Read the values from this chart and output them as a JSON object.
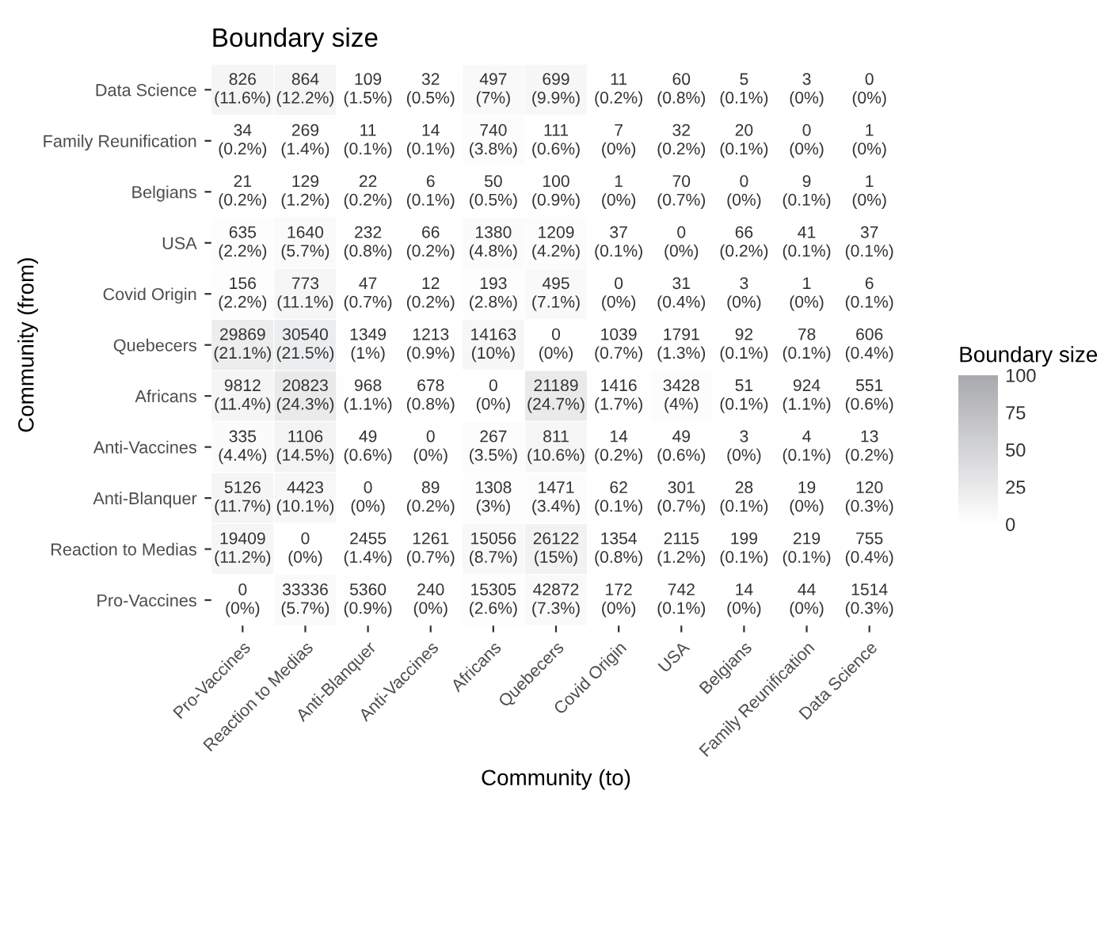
{
  "chart_data": {
    "type": "heatmap",
    "title": "Boundary size",
    "xlabel": "Community (to)",
    "ylabel": "Community (from)",
    "clabel": "Boundary size",
    "categories": [
      "Pro-Vaccines",
      "Reaction to Medias",
      "Anti-Blanquer",
      "Anti-Vaccines",
      "Africans",
      "Quebecers",
      "Covid Origin",
      "USA",
      "Belgians",
      "Family Reunification",
      "Data Science"
    ],
    "y_categories": [
      "Data Science",
      "Family Reunification",
      "Belgians",
      "USA",
      "Covid Origin",
      "Quebecers",
      "Africans",
      "Anti-Vaccines",
      "Anti-Blanquer",
      "Reaction to Medias",
      "Pro-Vaccines"
    ],
    "cells": [
      [
        11.6,
        12.2,
        1.5,
        0.5,
        7,
        9.9,
        0.2,
        0.8,
        0.1,
        0,
        0
      ],
      [
        0.2,
        1.4,
        0.1,
        0.1,
        3.8,
        0.6,
        0,
        0.2,
        0.1,
        0,
        0
      ],
      [
        0.2,
        1.2,
        0.2,
        0.1,
        0.5,
        0.9,
        0,
        0.7,
        0,
        0.1,
        0
      ],
      [
        2.2,
        5.7,
        0.8,
        0.2,
        4.8,
        4.2,
        0.1,
        0,
        0.2,
        0.1,
        0.1
      ],
      [
        2.2,
        11.1,
        0.7,
        0.2,
        2.8,
        7.1,
        0,
        0.4,
        0,
        0,
        0.1
      ],
      [
        21.1,
        21.5,
        1,
        0.9,
        10,
        0,
        0.7,
        1.3,
        0.1,
        0.1,
        0.4
      ],
      [
        11.4,
        24.3,
        1.1,
        0.8,
        0,
        24.7,
        1.7,
        4,
        0.1,
        1.1,
        0.6
      ],
      [
        4.4,
        14.5,
        0.6,
        0,
        3.5,
        10.6,
        0.2,
        0.6,
        0,
        0.1,
        0.2
      ],
      [
        11.7,
        10.1,
        0,
        0.2,
        3,
        3.4,
        0.1,
        0.7,
        0.1,
        0,
        0.3
      ],
      [
        11.2,
        0,
        1.4,
        0.7,
        8.7,
        15,
        0.8,
        1.2,
        0.1,
        0.1,
        0.4
      ],
      [
        0,
        5.7,
        0.9,
        0,
        2.6,
        7.3,
        0,
        0.1,
        0,
        0,
        0.3
      ]
    ],
    "cell_labels": [
      [
        "826\n(11.6%)",
        "864\n(12.2%)",
        "109\n(1.5%)",
        "32\n(0.5%)",
        "497\n(7%)",
        "699\n(9.9%)",
        "11\n(0.2%)",
        "60\n(0.8%)",
        "5\n(0.1%)",
        "3\n(0%)",
        "0\n(0%)"
      ],
      [
        "34\n(0.2%)",
        "269\n(1.4%)",
        "11\n(0.1%)",
        "14\n(0.1%)",
        "740\n(3.8%)",
        "111\n(0.6%)",
        "7\n(0%)",
        "32\n(0.2%)",
        "20\n(0.1%)",
        "0\n(0%)",
        "1\n(0%)"
      ],
      [
        "21\n(0.2%)",
        "129\n(1.2%)",
        "22\n(0.2%)",
        "6\n(0.1%)",
        "50\n(0.5%)",
        "100\n(0.9%)",
        "1\n(0%)",
        "70\n(0.7%)",
        "0\n(0%)",
        "9\n(0.1%)",
        "1\n(0%)"
      ],
      [
        "635\n(2.2%)",
        "1640\n(5.7%)",
        "232\n(0.8%)",
        "66\n(0.2%)",
        "1380\n(4.8%)",
        "1209\n(4.2%)",
        "37\n(0.1%)",
        "0\n(0%)",
        "66\n(0.2%)",
        "41\n(0.1%)",
        "37\n(0.1%)"
      ],
      [
        "156\n(2.2%)",
        "773\n(11.1%)",
        "47\n(0.7%)",
        "12\n(0.2%)",
        "193\n(2.8%)",
        "495\n(7.1%)",
        "0\n(0%)",
        "31\n(0.4%)",
        "3\n(0%)",
        "1\n(0%)",
        "6\n(0.1%)"
      ],
      [
        "29869\n(21.1%)",
        "30540\n(21.5%)",
        "1349\n(1%)",
        "1213\n(0.9%)",
        "14163\n(10%)",
        "0\n(0%)",
        "1039\n(0.7%)",
        "1791\n(1.3%)",
        "92\n(0.1%)",
        "78\n(0.1%)",
        "606\n(0.4%)"
      ],
      [
        "9812\n(11.4%)",
        "20823\n(24.3%)",
        "968\n(1.1%)",
        "678\n(0.8%)",
        "0\n(0%)",
        "21189\n(24.7%)",
        "1416\n(1.7%)",
        "3428\n(4%)",
        "51\n(0.1%)",
        "924\n(1.1%)",
        "551\n(0.6%)"
      ],
      [
        "335\n(4.4%)",
        "1106\n(14.5%)",
        "49\n(0.6%)",
        "0\n(0%)",
        "267\n(3.5%)",
        "811\n(10.6%)",
        "14\n(0.2%)",
        "49\n(0.6%)",
        "3\n(0%)",
        "4\n(0.1%)",
        "13\n(0.2%)"
      ],
      [
        "5126\n(11.7%)",
        "4423\n(10.1%)",
        "0\n(0%)",
        "89\n(0.2%)",
        "1308\n(3%)",
        "1471\n(3.4%)",
        "62\n(0.1%)",
        "301\n(0.7%)",
        "28\n(0.1%)",
        "19\n(0%)",
        "120\n(0.3%)"
      ],
      [
        "19409\n(11.2%)",
        "0\n(0%)",
        "2455\n(1.4%)",
        "1261\n(0.7%)",
        "15056\n(8.7%)",
        "26122\n(15%)",
        "1354\n(0.8%)",
        "2115\n(1.2%)",
        "199\n(0.1%)",
        "219\n(0.1%)",
        "755\n(0.4%)"
      ],
      [
        "0\n(0%)",
        "33336\n(5.7%)",
        "5360\n(0.9%)",
        "240\n(0%)",
        "15305\n(2.6%)",
        "42872\n(7.3%)",
        "172\n(0%)",
        "742\n(0.1%)",
        "14\n(0%)",
        "44\n(0%)",
        "1514\n(0.3%)"
      ]
    ],
    "clim": [
      0,
      100
    ],
    "cticks": [
      0,
      25,
      50,
      75,
      100
    ]
  }
}
